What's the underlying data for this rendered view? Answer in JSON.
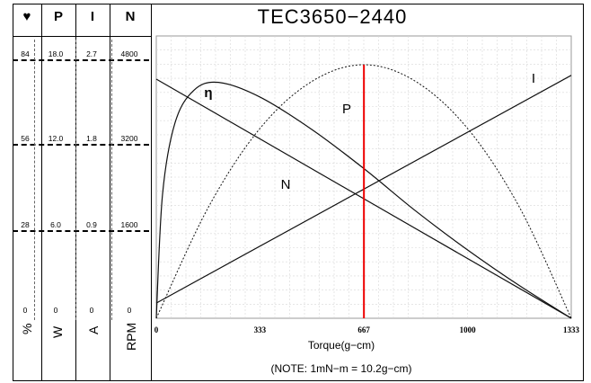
{
  "chart_data": {
    "type": "line",
    "title": "TEC3650−2440",
    "xlabel": "Torque(g−cm)",
    "note": "(NOTE: 1mN−m = 10.2g−cm)",
    "xlim": [
      0,
      1333
    ],
    "x_ticks": [
      "0",
      "333",
      "667",
      "1000",
      "1333"
    ],
    "columns": [
      {
        "header": "♥",
        "unit": "%",
        "ticks": [
          "84",
          "56",
          "28",
          "0"
        ]
      },
      {
        "header": "P",
        "unit": "W",
        "ticks": [
          "18.0",
          "12.0",
          "6.0",
          "0"
        ]
      },
      {
        "header": "I",
        "unit": "A",
        "ticks": [
          "2.7",
          "1.8",
          "0.9",
          "0"
        ]
      },
      {
        "header": "N",
        "unit": "RPM",
        "ticks": [
          "4800",
          "3200",
          "1600",
          "0"
        ]
      }
    ],
    "series": [
      {
        "name": "η",
        "scale_max": 84,
        "points": [
          [
            0,
            0
          ],
          [
            20,
            38
          ],
          [
            60,
            60
          ],
          [
            120,
            70
          ],
          [
            200,
            72.5
          ],
          [
            333,
            68
          ],
          [
            500,
            58
          ],
          [
            667,
            46
          ],
          [
            833,
            33
          ],
          [
            1000,
            21
          ],
          [
            1167,
            10
          ],
          [
            1333,
            0
          ]
        ]
      },
      {
        "name": "P",
        "scale_max": 18,
        "points": [
          [
            0,
            0
          ],
          [
            167,
            7.3
          ],
          [
            333,
            12.5
          ],
          [
            500,
            15.6
          ],
          [
            667,
            16.7
          ],
          [
            833,
            15.6
          ],
          [
            1000,
            12.5
          ],
          [
            1167,
            7.3
          ],
          [
            1333,
            0
          ]
        ]
      },
      {
        "name": "I",
        "scale_max": 2.7,
        "points": [
          [
            0,
            0.15
          ],
          [
            1333,
            2.4
          ]
        ]
      },
      {
        "name": "N",
        "scale_max": 4800,
        "points": [
          [
            0,
            4200
          ],
          [
            1333,
            0
          ]
        ]
      }
    ],
    "marker": {
      "x": 667,
      "color": "#ee0000"
    },
    "grid": true
  }
}
